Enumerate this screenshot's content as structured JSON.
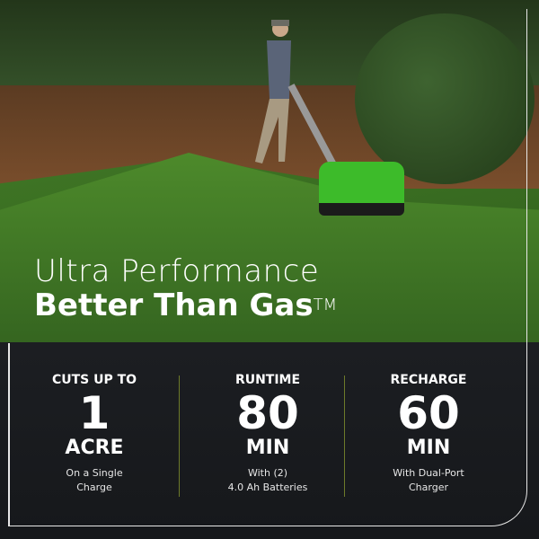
{
  "headline": {
    "line1": "Ultra Performance",
    "line2": "Better Than Gas",
    "trademark": "TM"
  },
  "stats": [
    {
      "label": "CUTS UP TO",
      "value": "1",
      "unit": "ACRE",
      "sub1": "On a Single",
      "sub2": "Charge"
    },
    {
      "label": "RUNTIME",
      "value": "80",
      "unit": "MIN",
      "sub1": "With (2)",
      "sub2": "4.0 Ah Batteries"
    },
    {
      "label": "RECHARGE",
      "value": "60",
      "unit": "MIN",
      "sub1": "With Dual-Port",
      "sub2": "Charger"
    }
  ],
  "colors": {
    "panel": "#1a1c1f",
    "divider": "#6d7a2a",
    "mower": "#3dbb2a"
  }
}
